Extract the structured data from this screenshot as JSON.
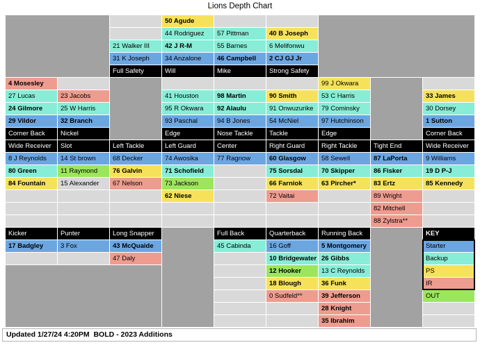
{
  "title": "Lions Depth Chart",
  "footer": {
    "updated": "Updated 1/27/24 4:20PM  BOLD - 2023 Additions"
  },
  "colors": {
    "blue": "#6CA6E1",
    "teal": "#87EDD6",
    "yellow": "#F6E25A",
    "salmon": "#EE9C90",
    "green": "#9CE65C",
    "empty": "#D9D9D9",
    "gray": "#A2A2A2",
    "header_bg": "#000000",
    "header_text": "#FFFFFF",
    "gridline": "#FFFFFF"
  },
  "legend_meaning": {
    "blue": "Starter",
    "teal": "Backup",
    "yellow": "PS",
    "salmon": "IR",
    "green": "OUT"
  },
  "grid": {
    "cols": 9,
    "rows": 25,
    "gray_blocks": [
      {
        "r": 1,
        "c": 1,
        "rs": 5,
        "cs": 2
      },
      {
        "r": 1,
        "c": 7,
        "rs": 5,
        "cs": 3
      },
      {
        "r": 6,
        "c": 3,
        "rs": 5,
        "cs": 1
      },
      {
        "r": 6,
        "c": 8,
        "rs": 5,
        "cs": 1
      },
      {
        "r": 18,
        "c": 4,
        "rs": 8,
        "cs": 1
      },
      {
        "r": 18,
        "c": 8,
        "rs": 8,
        "cs": 1
      },
      {
        "r": 21,
        "c": 1,
        "rs": 5,
        "cs": 3
      }
    ],
    "key_outline": {
      "r": 19,
      "c": 9,
      "rs": 4,
      "cs": 1
    },
    "cells": [
      {
        "r": 1,
        "c": 3,
        "s": "empty"
      },
      {
        "r": 1,
        "c": 4,
        "t": "50 Agude",
        "s": "yellow",
        "b": true
      },
      {
        "r": 1,
        "c": 5,
        "s": "empty"
      },
      {
        "r": 1,
        "c": 6,
        "s": "empty"
      },
      {
        "r": 2,
        "c": 3,
        "s": "empty"
      },
      {
        "r": 2,
        "c": 4,
        "t": "44 Rodriguez",
        "s": "teal"
      },
      {
        "r": 2,
        "c": 5,
        "t": "57 Pittman",
        "s": "teal"
      },
      {
        "r": 2,
        "c": 6,
        "t": "40 B Joseph",
        "s": "yellow",
        "b": true
      },
      {
        "r": 3,
        "c": 3,
        "t": "21 Walker III",
        "s": "teal"
      },
      {
        "r": 3,
        "c": 4,
        "t": "42 J R-M",
        "s": "teal",
        "b": true
      },
      {
        "r": 3,
        "c": 5,
        "t": "55 Barnes",
        "s": "teal"
      },
      {
        "r": 3,
        "c": 6,
        "t": "6 Melifonwu",
        "s": "teal"
      },
      {
        "r": 4,
        "c": 3,
        "t": "31 K Joseph",
        "s": "blue"
      },
      {
        "r": 4,
        "c": 4,
        "t": "34 Anzalone",
        "s": "blue"
      },
      {
        "r": 4,
        "c": 5,
        "t": "46 Campbell",
        "s": "blue",
        "b": true
      },
      {
        "r": 4,
        "c": 6,
        "t": "2 CJ GJ Jr",
        "s": "blue",
        "b": true
      },
      {
        "r": 5,
        "c": 3,
        "t": "Full Safety",
        "s": "header"
      },
      {
        "r": 5,
        "c": 4,
        "t": "Will",
        "s": "header"
      },
      {
        "r": 5,
        "c": 5,
        "t": "Mike",
        "s": "header"
      },
      {
        "r": 5,
        "c": 6,
        "t": "Strong Safety",
        "s": "header"
      },
      {
        "r": 6,
        "c": 1,
        "t": "4 Mosesley",
        "s": "salmon",
        "b": true
      },
      {
        "r": 6,
        "c": 2,
        "s": "empty"
      },
      {
        "r": 6,
        "c": 4,
        "s": "empty"
      },
      {
        "r": 6,
        "c": 5,
        "s": "empty"
      },
      {
        "r": 6,
        "c": 6,
        "s": "empty"
      },
      {
        "r": 6,
        "c": 7,
        "t": "99 J Okwara",
        "s": "yellow"
      },
      {
        "r": 6,
        "c": 9,
        "s": "empty"
      },
      {
        "r": 7,
        "c": 1,
        "t": "27 Lucas",
        "s": "teal"
      },
      {
        "r": 7,
        "c": 2,
        "t": "23 Jacobs",
        "s": "salmon"
      },
      {
        "r": 7,
        "c": 4,
        "t": "41 Houston",
        "s": "teal"
      },
      {
        "r": 7,
        "c": 5,
        "t": "98 Martin",
        "s": "teal",
        "b": true
      },
      {
        "r": 7,
        "c": 6,
        "t": "90 Smith",
        "s": "yellow",
        "b": true
      },
      {
        "r": 7,
        "c": 7,
        "t": "53 C Harris",
        "s": "teal"
      },
      {
        "r": 7,
        "c": 9,
        "t": "33 James",
        "s": "yellow",
        "b": true
      },
      {
        "r": 8,
        "c": 1,
        "t": "24 Gilmore",
        "s": "teal",
        "b": true
      },
      {
        "r": 8,
        "c": 2,
        "t": "25 W Harris",
        "s": "teal"
      },
      {
        "r": 8,
        "c": 4,
        "t": "95 R Okwara",
        "s": "teal"
      },
      {
        "r": 8,
        "c": 5,
        "t": "92 Alaulu",
        "s": "teal",
        "b": true
      },
      {
        "r": 8,
        "c": 6,
        "t": "91 Onwuzurike",
        "s": "teal"
      },
      {
        "r": 8,
        "c": 7,
        "t": "79 Cominsky",
        "s": "teal"
      },
      {
        "r": 8,
        "c": 9,
        "t": "30 Dorsey",
        "s": "teal"
      },
      {
        "r": 9,
        "c": 1,
        "t": "29 Vildor",
        "s": "blue",
        "b": true
      },
      {
        "r": 9,
        "c": 2,
        "t": "32 Branch",
        "s": "blue",
        "b": true
      },
      {
        "r": 9,
        "c": 4,
        "t": "93 Paschal",
        "s": "blue"
      },
      {
        "r": 9,
        "c": 5,
        "t": "94 B Jones",
        "s": "blue"
      },
      {
        "r": 9,
        "c": 6,
        "t": "54 McNiel",
        "s": "blue"
      },
      {
        "r": 9,
        "c": 7,
        "t": "97 Hutchinson",
        "s": "blue"
      },
      {
        "r": 9,
        "c": 9,
        "t": "1 Sutton",
        "s": "blue",
        "b": true
      },
      {
        "r": 10,
        "c": 1,
        "t": "Corner Back",
        "s": "header"
      },
      {
        "r": 10,
        "c": 2,
        "t": "Nickel",
        "s": "header"
      },
      {
        "r": 10,
        "c": 4,
        "t": "Edge",
        "s": "header"
      },
      {
        "r": 10,
        "c": 5,
        "t": "Nose Tackle",
        "s": "header"
      },
      {
        "r": 10,
        "c": 6,
        "t": "Tackle",
        "s": "header"
      },
      {
        "r": 10,
        "c": 7,
        "t": "Edge",
        "s": "header"
      },
      {
        "r": 10,
        "c": 9,
        "t": "Corner Back",
        "s": "header"
      },
      {
        "r": 11,
        "c": 1,
        "t": "Wide Receiver",
        "s": "header"
      },
      {
        "r": 11,
        "c": 2,
        "t": "Slot",
        "s": "header"
      },
      {
        "r": 11,
        "c": 3,
        "t": "Left Tackle",
        "s": "header"
      },
      {
        "r": 11,
        "c": 4,
        "t": "Left Guard",
        "s": "header"
      },
      {
        "r": 11,
        "c": 5,
        "t": "Center",
        "s": "header"
      },
      {
        "r": 11,
        "c": 6,
        "t": "Right Guard",
        "s": "header"
      },
      {
        "r": 11,
        "c": 7,
        "t": "Right Tackle",
        "s": "header"
      },
      {
        "r": 11,
        "c": 8,
        "t": "Tight End",
        "s": "header"
      },
      {
        "r": 11,
        "c": 9,
        "t": "Wide Receiver",
        "s": "header"
      },
      {
        "r": 12,
        "c": 1,
        "t": "8 J Reynolds",
        "s": "blue"
      },
      {
        "r": 12,
        "c": 2,
        "t": "14 St brown",
        "s": "blue"
      },
      {
        "r": 12,
        "c": 3,
        "t": "68 Decker",
        "s": "blue"
      },
      {
        "r": 12,
        "c": 4,
        "t": "74 Awosika",
        "s": "blue"
      },
      {
        "r": 12,
        "c": 5,
        "t": "77 Ragnow",
        "s": "blue"
      },
      {
        "r": 12,
        "c": 6,
        "t": "60 Glasgow",
        "s": "blue",
        "b": true
      },
      {
        "r": 12,
        "c": 7,
        "t": "58 Sewell",
        "s": "blue"
      },
      {
        "r": 12,
        "c": 8,
        "t": "87 LaPorta",
        "s": "blue",
        "b": true
      },
      {
        "r": 12,
        "c": 9,
        "t": "9 Williams",
        "s": "blue"
      },
      {
        "r": 13,
        "c": 1,
        "t": "80 Green",
        "s": "teal",
        "b": true
      },
      {
        "r": 13,
        "c": 2,
        "t": "11 Raymond",
        "s": "green"
      },
      {
        "r": 13,
        "c": 3,
        "t": "76 Galvin",
        "s": "yellow",
        "b": true
      },
      {
        "r": 13,
        "c": 4,
        "t": "71 Schofield",
        "s": "teal",
        "b": true
      },
      {
        "r": 13,
        "c": 5,
        "s": "empty"
      },
      {
        "r": 13,
        "c": 6,
        "t": "75 Sorsdal",
        "s": "teal",
        "b": true
      },
      {
        "r": 13,
        "c": 7,
        "t": "70 Skipper",
        "s": "teal",
        "b": true
      },
      {
        "r": 13,
        "c": 8,
        "t": "86 Fisker",
        "s": "teal",
        "b": true
      },
      {
        "r": 13,
        "c": 9,
        "t": "19 D P-J",
        "s": "teal",
        "b": true
      },
      {
        "r": 14,
        "c": 1,
        "t": "84 Fountain",
        "s": "yellow",
        "b": true
      },
      {
        "r": 14,
        "c": 2,
        "t": "15 Alexander",
        "s": "empty"
      },
      {
        "r": 14,
        "c": 3,
        "t": "67 Nelson",
        "s": "salmon"
      },
      {
        "r": 14,
        "c": 4,
        "t": "73 Jackson",
        "s": "green"
      },
      {
        "r": 14,
        "c": 5,
        "s": "empty"
      },
      {
        "r": 14,
        "c": 6,
        "t": "66 Farniok",
        "s": "yellow",
        "b": true
      },
      {
        "r": 14,
        "c": 7,
        "t": "63 Pircher*",
        "s": "yellow",
        "b": true
      },
      {
        "r": 14,
        "c": 8,
        "t": "83 Ertz",
        "s": "yellow",
        "b": true
      },
      {
        "r": 14,
        "c": 9,
        "t": "85 Kennedy",
        "s": "yellow",
        "b": true
      },
      {
        "r": 15,
        "c": 1,
        "s": "empty"
      },
      {
        "r": 15,
        "c": 2,
        "s": "empty"
      },
      {
        "r": 15,
        "c": 3,
        "s": "empty"
      },
      {
        "r": 15,
        "c": 4,
        "t": "62 Niese",
        "s": "yellow",
        "b": true
      },
      {
        "r": 15,
        "c": 5,
        "s": "empty"
      },
      {
        "r": 15,
        "c": 6,
        "t": "72 Vaitai",
        "s": "salmon"
      },
      {
        "r": 15,
        "c": 7,
        "s": "empty"
      },
      {
        "r": 15,
        "c": 8,
        "t": "89 Wright",
        "s": "salmon"
      },
      {
        "r": 15,
        "c": 9,
        "s": "empty"
      },
      {
        "r": 16,
        "c": 1,
        "s": "empty"
      },
      {
        "r": 16,
        "c": 2,
        "s": "empty"
      },
      {
        "r": 16,
        "c": 3,
        "s": "empty"
      },
      {
        "r": 16,
        "c": 4,
        "s": "empty"
      },
      {
        "r": 16,
        "c": 5,
        "s": "empty"
      },
      {
        "r": 16,
        "c": 6,
        "s": "empty"
      },
      {
        "r": 16,
        "c": 7,
        "s": "empty"
      },
      {
        "r": 16,
        "c": 8,
        "t": "82 Mitchell",
        "s": "salmon"
      },
      {
        "r": 16,
        "c": 9,
        "s": "empty"
      },
      {
        "r": 17,
        "c": 1,
        "s": "empty"
      },
      {
        "r": 17,
        "c": 2,
        "s": "empty"
      },
      {
        "r": 17,
        "c": 3,
        "s": "empty"
      },
      {
        "r": 17,
        "c": 4,
        "s": "empty"
      },
      {
        "r": 17,
        "c": 5,
        "s": "empty"
      },
      {
        "r": 17,
        "c": 6,
        "s": "empty"
      },
      {
        "r": 17,
        "c": 7,
        "s": "empty"
      },
      {
        "r": 17,
        "c": 8,
        "t": "88 Zylstra**",
        "s": "salmon"
      },
      {
        "r": 17,
        "c": 9,
        "s": "empty"
      },
      {
        "r": 18,
        "c": 1,
        "t": "Kicker",
        "s": "header"
      },
      {
        "r": 18,
        "c": 2,
        "t": "Punter",
        "s": "header"
      },
      {
        "r": 18,
        "c": 3,
        "t": "Long Snapper",
        "s": "header"
      },
      {
        "r": 18,
        "c": 5,
        "t": "Full Back",
        "s": "header"
      },
      {
        "r": 18,
        "c": 6,
        "t": "Quarterback",
        "s": "header"
      },
      {
        "r": 18,
        "c": 7,
        "t": "Running Back",
        "s": "header"
      },
      {
        "r": 18,
        "c": 9,
        "t": "KEY",
        "s": "header",
        "b": true
      },
      {
        "r": 19,
        "c": 1,
        "t": "17 Badgley",
        "s": "blue",
        "b": true
      },
      {
        "r": 19,
        "c": 2,
        "t": "3 Fox",
        "s": "blue"
      },
      {
        "r": 19,
        "c": 3,
        "t": "43 McQuaide",
        "s": "blue",
        "b": true
      },
      {
        "r": 19,
        "c": 5,
        "t": "45 Cabinda",
        "s": "teal"
      },
      {
        "r": 19,
        "c": 6,
        "t": "16 Goff",
        "s": "blue"
      },
      {
        "r": 19,
        "c": 7,
        "t": "5 Montgomery",
        "s": "blue",
        "b": true
      },
      {
        "r": 19,
        "c": 9,
        "t": "Starter",
        "s": "blue",
        "n": "key-starter"
      },
      {
        "r": 20,
        "c": 1,
        "s": "empty"
      },
      {
        "r": 20,
        "c": 2,
        "s": "empty"
      },
      {
        "r": 20,
        "c": 3,
        "t": "47 Daly",
        "s": "salmon"
      },
      {
        "r": 20,
        "c": 5,
        "s": "empty"
      },
      {
        "r": 20,
        "c": 6,
        "t": "10 Bridgewater",
        "s": "teal",
        "b": true
      },
      {
        "r": 20,
        "c": 7,
        "t": "26 Gibbs",
        "s": "teal",
        "b": true
      },
      {
        "r": 20,
        "c": 9,
        "t": "Backup",
        "s": "teal",
        "n": "key-backup"
      },
      {
        "r": 21,
        "c": 5,
        "s": "empty"
      },
      {
        "r": 21,
        "c": 6,
        "t": "12 Hooker",
        "s": "green",
        "b": true
      },
      {
        "r": 21,
        "c": 7,
        "t": "13 C Reynolds",
        "s": "teal"
      },
      {
        "r": 21,
        "c": 9,
        "t": "PS",
        "s": "yellow",
        "n": "key-ps"
      },
      {
        "r": 22,
        "c": 5,
        "s": "empty"
      },
      {
        "r": 22,
        "c": 6,
        "t": "18 Blough",
        "s": "yellow",
        "b": true
      },
      {
        "r": 22,
        "c": 7,
        "t": "36 Funk",
        "s": "yellow",
        "b": true
      },
      {
        "r": 22,
        "c": 9,
        "t": "IR",
        "s": "salmon",
        "n": "key-ir"
      },
      {
        "r": 23,
        "c": 5,
        "s": "empty"
      },
      {
        "r": 23,
        "c": 6,
        "t": "0 Sudfeld**",
        "s": "salmon"
      },
      {
        "r": 23,
        "c": 7,
        "t": "39 Jefferson",
        "s": "salmon",
        "b": true
      },
      {
        "r": 23,
        "c": 9,
        "t": "OUT",
        "s": "green",
        "n": "key-out"
      },
      {
        "r": 24,
        "c": 5,
        "s": "empty"
      },
      {
        "r": 24,
        "c": 6,
        "s": "empty"
      },
      {
        "r": 24,
        "c": 7,
        "t": "28 Knight",
        "s": "salmon",
        "b": true
      },
      {
        "r": 24,
        "c": 9,
        "s": "empty"
      },
      {
        "r": 25,
        "c": 5,
        "s": "empty"
      },
      {
        "r": 25,
        "c": 6,
        "s": "empty"
      },
      {
        "r": 25,
        "c": 7,
        "t": "35 Ibrahim",
        "s": "salmon",
        "b": true
      },
      {
        "r": 25,
        "c": 9,
        "s": "empty"
      }
    ]
  }
}
